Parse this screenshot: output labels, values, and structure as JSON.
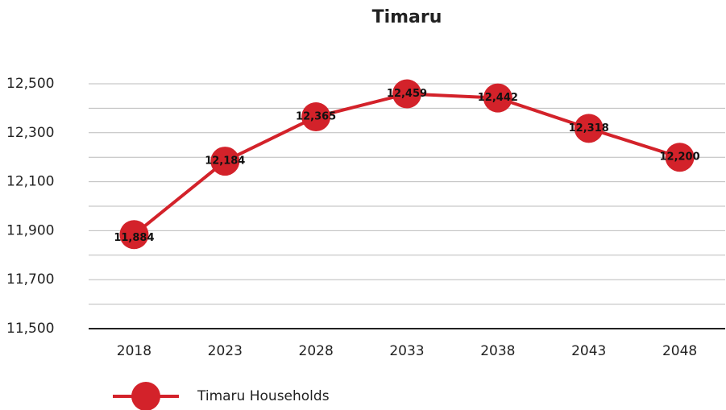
{
  "chart_data": {
    "type": "line",
    "title": "Timaru",
    "categories": [
      "2018",
      "2023",
      "2028",
      "2033",
      "2038",
      "2043",
      "2048"
    ],
    "series": [
      {
        "name": "Timaru Households",
        "color": "#d3222a",
        "values": [
          11884,
          12184,
          12365,
          12459,
          12442,
          12318,
          12200
        ],
        "value_labels": [
          "11,884",
          "12,184",
          "12,365",
          "12,459",
          "12,442",
          "12,318",
          "12,200"
        ]
      }
    ],
    "ylim": [
      11500,
      12500
    ],
    "yticks": [
      {
        "value": 11500,
        "label": "11,500"
      },
      {
        "value": 11700,
        "label": "11,700"
      },
      {
        "value": 11900,
        "label": "11,900"
      },
      {
        "value": 12100,
        "label": "12,100"
      },
      {
        "value": 12300,
        "label": "12,300"
      },
      {
        "value": 12500,
        "label": "12,500"
      }
    ],
    "yminorticks": [
      11600,
      11800,
      12000,
      12200,
      12400
    ],
    "grid": true,
    "legend": "bottom-left"
  }
}
